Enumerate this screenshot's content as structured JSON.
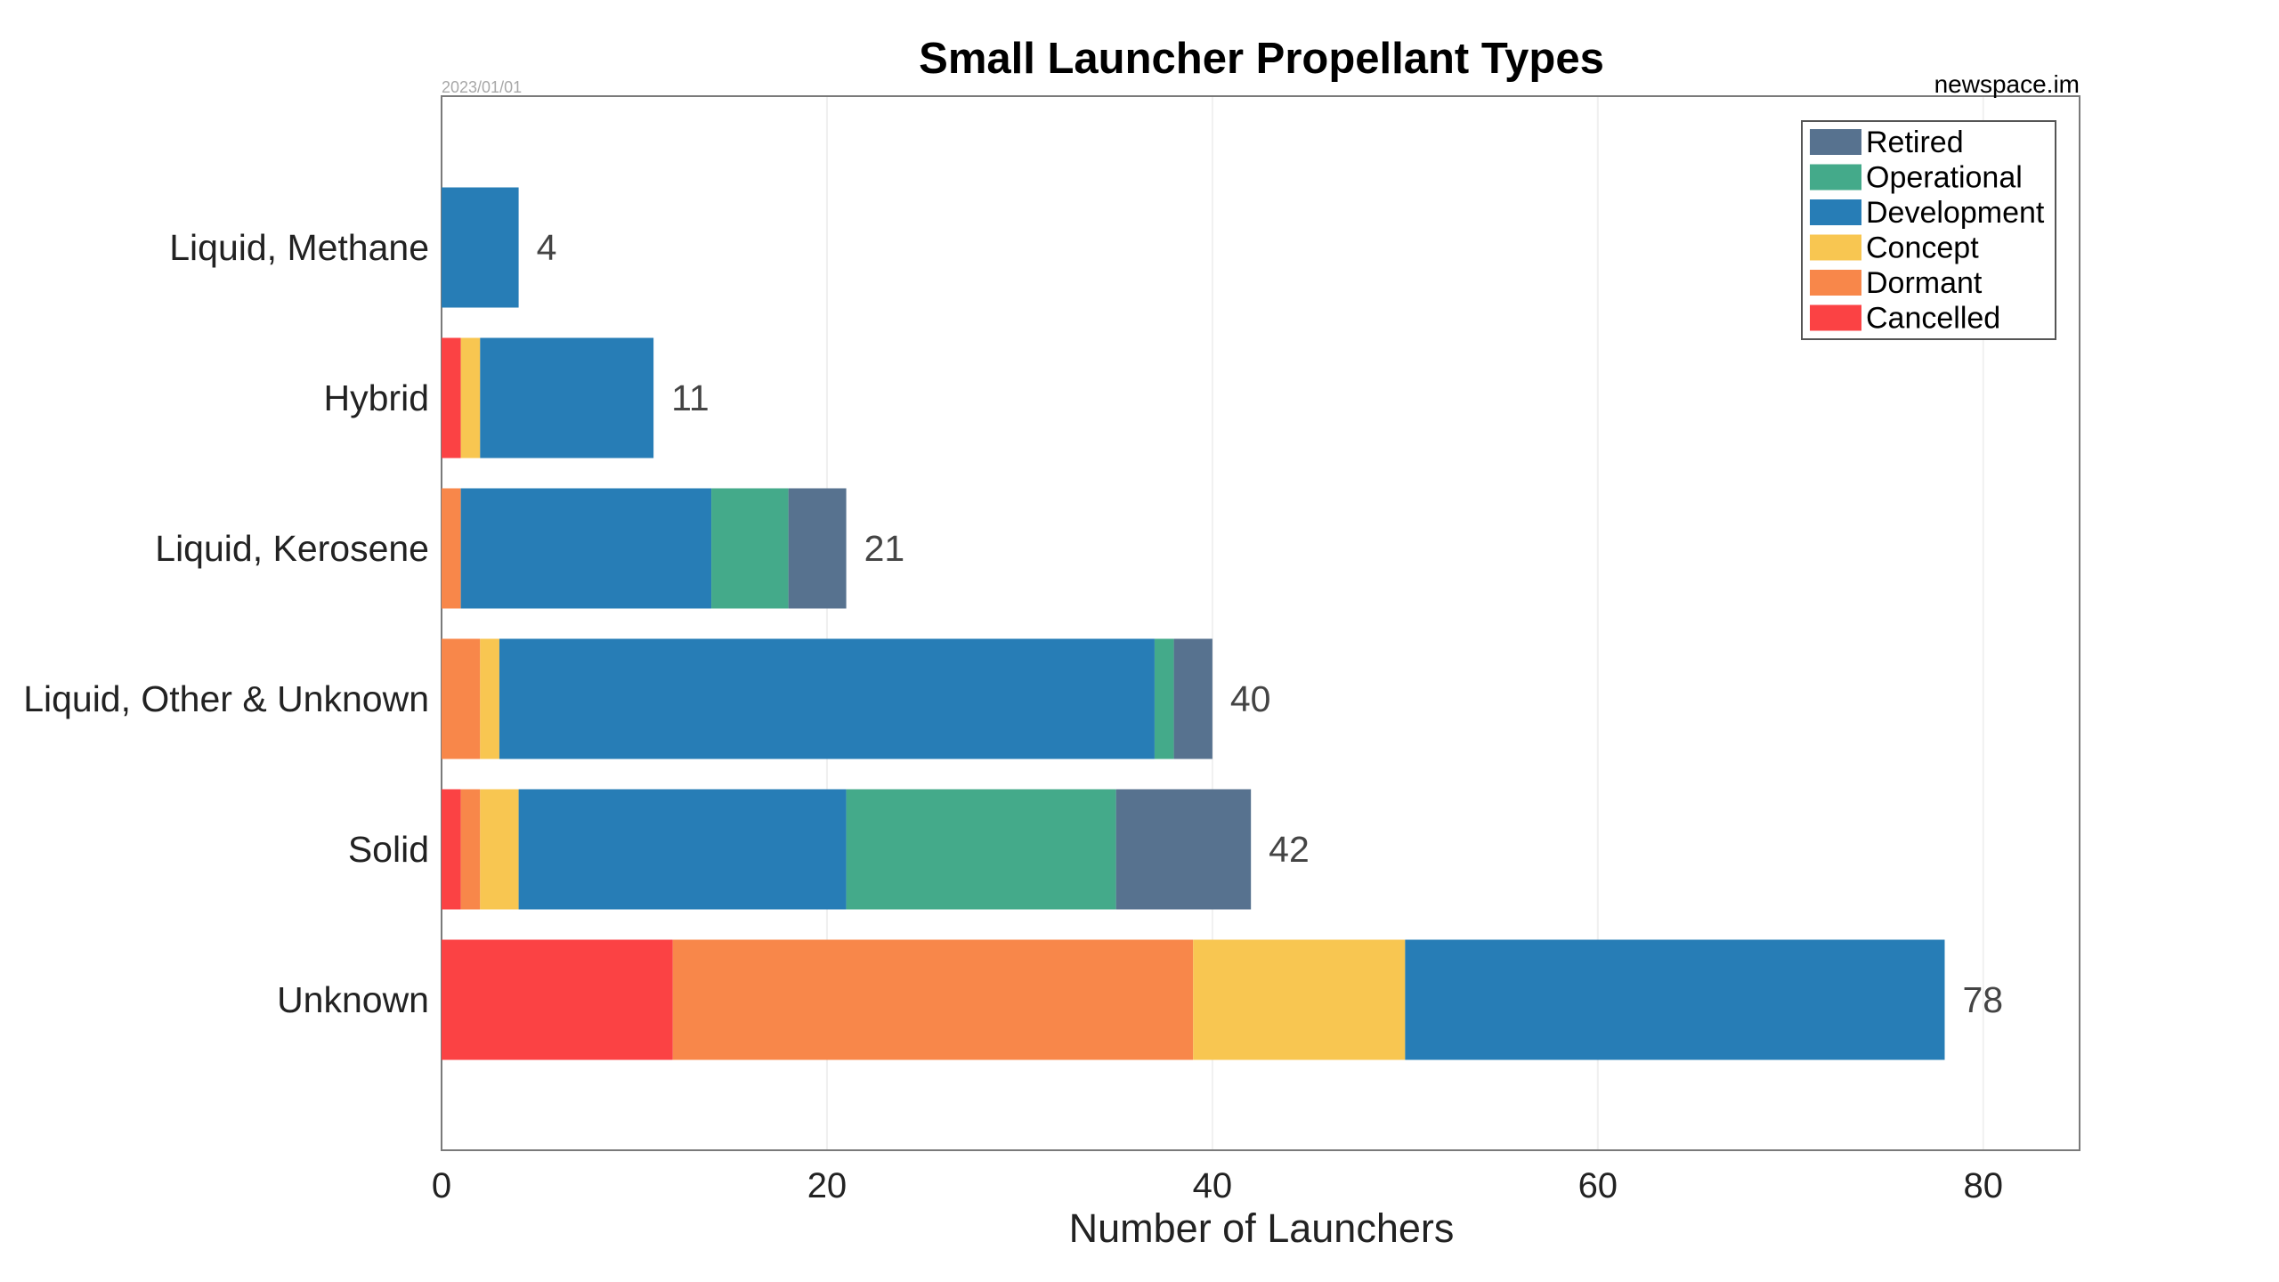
{
  "chart_data": {
    "type": "bar",
    "orientation": "horizontal",
    "stacked": true,
    "title": "Small Launcher Propellant Types",
    "date": "2023/01/01",
    "source": "newspace.im",
    "xlabel": "Number of Launchers",
    "ylabel": "",
    "xlim": [
      0,
      85
    ],
    "xticks": [
      0,
      20,
      40,
      60,
      80
    ],
    "grid": true,
    "legend_position": "top-right",
    "categories": [
      "Liquid, Methane",
      "Hybrid",
      "Liquid, Kerosene",
      "Liquid, Other & Unknown",
      "Solid",
      "Unknown"
    ],
    "totals": [
      4,
      11,
      21,
      40,
      42,
      78
    ],
    "series": [
      {
        "name": "Cancelled",
        "color": "#fb4244",
        "values": [
          0,
          1,
          0,
          0,
          1,
          12
        ]
      },
      {
        "name": "Dormant",
        "color": "#f8874a",
        "values": [
          0,
          0,
          1,
          2,
          1,
          27
        ]
      },
      {
        "name": "Concept",
        "color": "#f8c651",
        "values": [
          0,
          1,
          0,
          1,
          2,
          11
        ]
      },
      {
        "name": "Development",
        "color": "#277db6",
        "values": [
          4,
          9,
          13,
          34,
          17,
          28
        ]
      },
      {
        "name": "Operational",
        "color": "#44aa8a",
        "values": [
          0,
          0,
          4,
          1,
          14,
          0
        ]
      },
      {
        "name": "Retired",
        "color": "#57728f",
        "values": [
          0,
          0,
          3,
          2,
          7,
          0
        ]
      }
    ],
    "legend_order": [
      "Retired",
      "Operational",
      "Development",
      "Concept",
      "Dormant",
      "Cancelled"
    ]
  }
}
